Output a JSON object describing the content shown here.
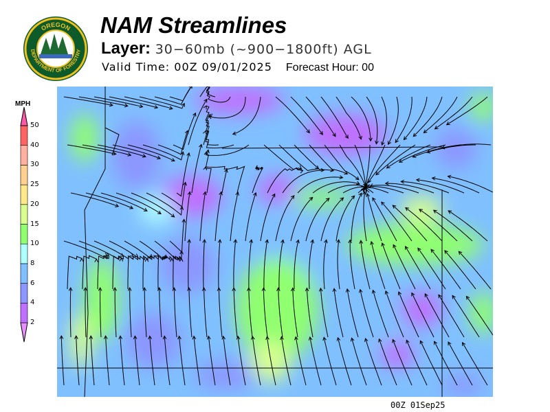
{
  "header": {
    "title": "NAM Streamlines",
    "layer_label": "Layer:",
    "layer_value": "30−60mb (~900−1800ft) AGL",
    "valid_time": "Valid Time: 00Z 09/01/2025",
    "forecast_hour": "Forecast Hour: 00"
  },
  "logo": {
    "top_text": "OREGON",
    "bottom_text": "DEPARTMENT OF FORESTRY"
  },
  "legend": {
    "unit": "MPH",
    "bins": [
      {
        "label": "2",
        "color": "#c070ff"
      },
      {
        "label": "4",
        "color": "#8c96ff"
      },
      {
        "label": "6",
        "color": "#80c0ff"
      },
      {
        "label": "8",
        "color": "#b0ffff"
      },
      {
        "label": "10",
        "color": "#90ff70"
      },
      {
        "label": "15",
        "color": "#d8ff90"
      },
      {
        "label": "20",
        "color": "#ffe98a"
      },
      {
        "label": "25",
        "color": "#ffd090"
      },
      {
        "label": "30",
        "color": "#ffb0a0"
      },
      {
        "label": "40",
        "color": "#ff6464"
      },
      {
        "label": "50",
        "color": "#ff5aaa"
      }
    ],
    "below_color": "#e890ff"
  },
  "footer": {
    "stamp": "00Z 01Sep25"
  }
}
